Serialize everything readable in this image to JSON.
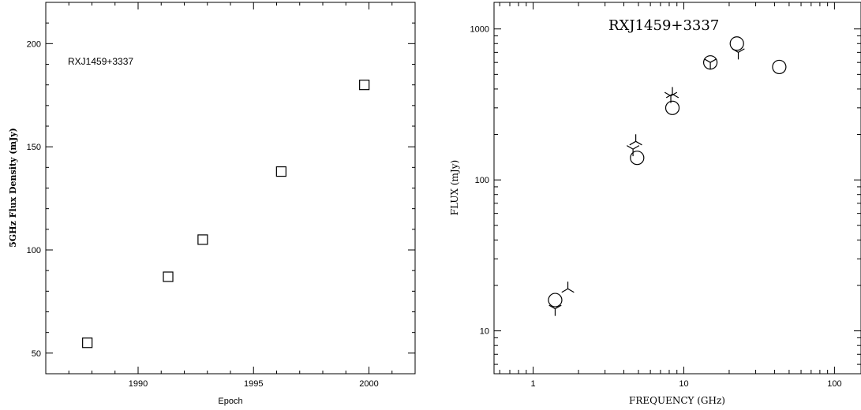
{
  "chart_data": [
    {
      "type": "scatter",
      "title": "",
      "annotation": "RXJ1459+3337",
      "xlabel": "Epoch",
      "ylabel": "5GHz Flux Density (mJy)",
      "xlim": [
        1986,
        2002
      ],
      "ylim": [
        40,
        220
      ],
      "xticks": [
        1990,
        1995,
        2000
      ],
      "yticks": [
        50,
        100,
        150,
        200
      ],
      "grid": false,
      "marker": "square",
      "color": "#000000",
      "points": [
        {
          "x": 1987.8,
          "y": 55
        },
        {
          "x": 1991.3,
          "y": 87
        },
        {
          "x": 1992.8,
          "y": 105
        },
        {
          "x": 1996.2,
          "y": 138
        },
        {
          "x": 1999.8,
          "y": 180
        }
      ]
    },
    {
      "type": "scatter",
      "title": "RXJ1459+3337",
      "xlabel": "FREQUENCY (GHz)",
      "ylabel": "FLUX (mJy)",
      "xscale": "log",
      "yscale": "log",
      "xlim": [
        0.55,
        150
      ],
      "ylim": [
        5.2,
        1500
      ],
      "xticks": [
        1,
        10,
        100
      ],
      "yticks": [
        10,
        100,
        1000
      ],
      "grid": false,
      "color": "#000000",
      "series": [
        {
          "marker": "circle",
          "points": [
            {
              "x": 1.4,
              "y": 16
            },
            {
              "x": 4.9,
              "y": 140
            },
            {
              "x": 8.4,
              "y": 300
            },
            {
              "x": 15,
              "y": 600
            },
            {
              "x": 22.5,
              "y": 800
            },
            {
              "x": 43,
              "y": 560
            }
          ]
        },
        {
          "marker": "tristar-up",
          "points": [
            {
              "x": 1.7,
              "y": 19
            },
            {
              "x": 4.8,
              "y": 180
            },
            {
              "x": 8.4,
              "y": 370
            }
          ]
        },
        {
          "marker": "tristar-down",
          "points": [
            {
              "x": 1.4,
              "y": 14
            },
            {
              "x": 4.6,
              "y": 160
            },
            {
              "x": 8.2,
              "y": 360
            },
            {
              "x": 15,
              "y": 600
            },
            {
              "x": 23,
              "y": 700
            }
          ]
        }
      ]
    }
  ]
}
